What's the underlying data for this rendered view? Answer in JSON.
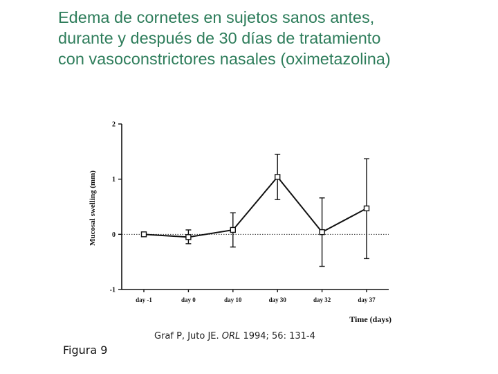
{
  "slide": {
    "title_lines": [
      "Edema de cornetes en sujetos sanos antes,",
      "durante y después de 30 días de tratamiento",
      "con vasoconstrictores nasales (oximetazolina)"
    ],
    "title_color": "#2e7d5b",
    "citation": {
      "authors": "Graf P, Juto JE.",
      "journal": "ORL",
      "details": "1994; 56: 131-4"
    },
    "figure_label": "Figura 9"
  },
  "chart_data": {
    "type": "line",
    "categories": [
      "day -1",
      "day 0",
      "day 10",
      "day 30",
      "day 32",
      "day 37"
    ],
    "series": [
      {
        "values": [
          0.0,
          -0.05,
          0.08,
          1.04,
          0.04,
          0.47
        ],
        "error_upper": [
          0.0,
          0.08,
          0.39,
          1.45,
          0.66,
          1.37
        ],
        "error_lower": [
          0.0,
          -0.17,
          -0.23,
          0.63,
          -0.58,
          -0.44
        ],
        "marker": "open-square",
        "color": "#111111"
      }
    ],
    "xlabel": "Time (days)",
    "ylabel": "Mucosal swelling (mm)",
    "ylim": [
      -1,
      2
    ],
    "yticks": [
      -1,
      0,
      1,
      2
    ],
    "reference_line": {
      "y": 0,
      "style": "dotted"
    },
    "grid": false
  }
}
